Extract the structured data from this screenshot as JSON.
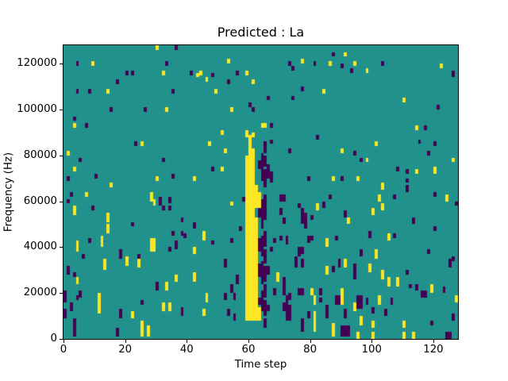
{
  "chart_data": {
    "type": "heatmap",
    "title": "Predicted : La",
    "xlabel": "Time step",
    "ylabel": "Frequency (Hz)",
    "x_range": [
      0,
      128
    ],
    "y_range": [
      0,
      128000
    ],
    "x_ticks": [
      0,
      20,
      40,
      60,
      80,
      100,
      120
    ],
    "y_ticks": [
      0,
      20000,
      40000,
      60000,
      80000,
      100000,
      120000
    ],
    "grid_size": [
      128,
      128
    ],
    "colormap": "viridis",
    "colors": {
      "mid": "#21918c",
      "high": "#fde725",
      "low": "#440154"
    },
    "cells": {
      "high_runs": [
        [
          30,
          126,
          127
        ],
        [
          9,
          119,
          120
        ],
        [
          32,
          115,
          116
        ],
        [
          43,
          114,
          115
        ],
        [
          44,
          115,
          116
        ],
        [
          59,
          115,
          116
        ],
        [
          46,
          112,
          113
        ],
        [
          61,
          111,
          112
        ],
        [
          14,
          107,
          108
        ],
        [
          49,
          107,
          108
        ],
        [
          33,
          99,
          100
        ],
        [
          54,
          99,
          100
        ],
        [
          3,
          92,
          93
        ],
        [
          64,
          92,
          93
        ],
        [
          51,
          89,
          90
        ],
        [
          59,
          89,
          90
        ],
        [
          61,
          88,
          89
        ],
        [
          53,
          120,
          121
        ],
        [
          25,
          84,
          85
        ],
        [
          47,
          84,
          85
        ],
        [
          91,
          123,
          124
        ],
        [
          77,
          120,
          121
        ],
        [
          122,
          118,
          119
        ],
        [
          86,
          119,
          120
        ],
        [
          94,
          119,
          120
        ],
        [
          98,
          116,
          117
        ],
        [
          110,
          103,
          104
        ],
        [
          84,
          107,
          108
        ],
        [
          114,
          91,
          92
        ],
        [
          65,
          92,
          93
        ],
        [
          101,
          84,
          85
        ],
        [
          1,
          80,
          81
        ],
        [
          52,
          81,
          82
        ],
        [
          3,
          73,
          74
        ],
        [
          30,
          69,
          70
        ],
        [
          42,
          69,
          70
        ],
        [
          51,
          73,
          74
        ],
        [
          15,
          66,
          67
        ],
        [
          7,
          62,
          63
        ],
        [
          28,
          60,
          63
        ],
        [
          29,
          58,
          60
        ],
        [
          3,
          54,
          57
        ],
        [
          54,
          58,
          59
        ],
        [
          14,
          51,
          54
        ],
        [
          14,
          46,
          49
        ],
        [
          45,
          45,
          46
        ],
        [
          4,
          38,
          42
        ],
        [
          28,
          38,
          43
        ],
        [
          29,
          38,
          43
        ],
        [
          12,
          40,
          44
        ],
        [
          42,
          37,
          39
        ],
        [
          45,
          43,
          44
        ],
        [
          90,
          81,
          82
        ],
        [
          98,
          77,
          78
        ],
        [
          126,
          77,
          78
        ],
        [
          114,
          72,
          73
        ],
        [
          120,
          72,
          74
        ],
        [
          87,
          69,
          70
        ],
        [
          95,
          69,
          70
        ],
        [
          103,
          65,
          67
        ],
        [
          102,
          60,
          62
        ],
        [
          124,
          60,
          62
        ],
        [
          82,
          56,
          58
        ],
        [
          100,
          54,
          56
        ],
        [
          103,
          56,
          58
        ],
        [
          92,
          50,
          52
        ],
        [
          105,
          43,
          45
        ],
        [
          85,
          40,
          43
        ],
        [
          20,
          32,
          35
        ],
        [
          24,
          31,
          34
        ],
        [
          13,
          30,
          34
        ],
        [
          4,
          24,
          26
        ],
        [
          36,
          25,
          27
        ],
        [
          42,
          25,
          28
        ],
        [
          33,
          21,
          24
        ],
        [
          11,
          11,
          19
        ],
        [
          46,
          16,
          19
        ],
        [
          32,
          12,
          15
        ],
        [
          34,
          12,
          15
        ],
        [
          22,
          9,
          11
        ],
        [
          45,
          10,
          12
        ],
        [
          25,
          1,
          7
        ],
        [
          27,
          1,
          5
        ],
        [
          101,
          35,
          38
        ],
        [
          85,
          28,
          31
        ],
        [
          91,
          31,
          34
        ],
        [
          99,
          29,
          32
        ],
        [
          103,
          26,
          29
        ],
        [
          105,
          23,
          26
        ],
        [
          108,
          23,
          26
        ],
        [
          119,
          20,
          23
        ],
        [
          69,
          25,
          28
        ],
        [
          80,
          19,
          21
        ],
        [
          81,
          15,
          18
        ],
        [
          90,
          15,
          21
        ],
        [
          102,
          15,
          18
        ],
        [
          94,
          12,
          15
        ],
        [
          81,
          3,
          11
        ],
        [
          96,
          6,
          9
        ],
        [
          100,
          5,
          7
        ],
        [
          110,
          5,
          7
        ],
        [
          87,
          1,
          6
        ],
        [
          95,
          0,
          2
        ],
        [
          100,
          0,
          2
        ],
        [
          110,
          0,
          2
        ],
        [
          113,
          0,
          2
        ],
        [
          127,
          16,
          18
        ],
        [
          59,
          8,
          79
        ],
        [
          59,
          88,
          89
        ],
        [
          60,
          8,
          88
        ],
        [
          61,
          8,
          82
        ],
        [
          62,
          8,
          52
        ],
        [
          62,
          57,
          66
        ],
        [
          63,
          57,
          63
        ],
        [
          63,
          8,
          13
        ]
      ],
      "low_runs": [
        [
          36,
          126,
          127
        ],
        [
          4,
          119,
          120
        ],
        [
          33,
          119,
          120
        ],
        [
          20,
          115,
          116
        ],
        [
          22,
          115,
          116
        ],
        [
          41,
          115,
          116
        ],
        [
          56,
          115,
          116
        ],
        [
          48,
          114,
          115
        ],
        [
          17,
          111,
          112
        ],
        [
          53,
          111,
          112
        ],
        [
          4,
          107,
          108
        ],
        [
          8,
          107,
          108
        ],
        [
          35,
          107,
          108
        ],
        [
          15,
          99,
          100
        ],
        [
          26,
          99,
          100
        ],
        [
          60,
          101,
          102
        ],
        [
          61,
          99,
          100
        ],
        [
          3,
          95,
          96
        ],
        [
          7,
          92,
          93
        ],
        [
          23,
          84,
          85
        ],
        [
          87,
          123,
          124
        ],
        [
          73,
          119,
          120
        ],
        [
          81,
          119,
          120
        ],
        [
          103,
          119,
          120
        ],
        [
          90,
          118,
          119
        ],
        [
          74,
          117,
          118
        ],
        [
          93,
          116,
          117
        ],
        [
          126,
          114,
          116
        ],
        [
          77,
          108,
          109
        ],
        [
          66,
          104,
          105
        ],
        [
          74,
          104,
          105
        ],
        [
          121,
          100,
          101
        ],
        [
          67,
          92,
          93
        ],
        [
          117,
          91,
          92
        ],
        [
          82,
          87,
          88
        ],
        [
          67,
          85,
          86
        ],
        [
          115,
          85,
          86
        ],
        [
          120,
          84,
          85
        ],
        [
          73,
          81,
          82
        ],
        [
          5,
          77,
          78
        ],
        [
          32,
          77,
          78
        ],
        [
          1,
          69,
          70
        ],
        [
          10,
          70,
          71
        ],
        [
          35,
          70,
          71
        ],
        [
          48,
          73,
          74
        ],
        [
          2,
          62,
          63
        ],
        [
          1,
          59,
          60
        ],
        [
          9,
          56,
          57
        ],
        [
          31,
          58,
          61
        ],
        [
          32,
          56,
          57
        ],
        [
          34,
          59,
          61
        ],
        [
          34,
          56,
          57
        ],
        [
          22,
          49,
          50
        ],
        [
          38,
          51,
          52
        ],
        [
          42,
          48,
          50
        ],
        [
          38,
          45,
          46
        ],
        [
          35,
          45,
          46
        ],
        [
          54,
          42,
          43
        ],
        [
          57,
          47,
          48
        ],
        [
          58,
          60,
          61
        ],
        [
          39,
          44,
          45
        ],
        [
          94,
          80,
          81
        ],
        [
          96,
          77,
          78
        ],
        [
          118,
          80,
          81
        ],
        [
          108,
          73,
          74
        ],
        [
          111,
          72,
          73
        ],
        [
          79,
          69,
          70
        ],
        [
          90,
          69,
          70
        ],
        [
          111,
          68,
          69
        ],
        [
          111,
          64,
          66
        ],
        [
          107,
          61,
          62
        ],
        [
          120,
          62,
          63
        ],
        [
          70,
          60,
          62
        ],
        [
          71,
          60,
          62
        ],
        [
          86,
          61,
          62
        ],
        [
          84,
          57,
          59
        ],
        [
          76,
          57,
          58
        ],
        [
          77,
          50,
          56
        ],
        [
          78,
          48,
          54
        ],
        [
          70,
          54,
          56
        ],
        [
          71,
          50,
          52
        ],
        [
          91,
          53,
          55
        ],
        [
          80,
          52,
          53
        ],
        [
          113,
          50,
          52
        ],
        [
          107,
          44,
          45
        ],
        [
          99,
          45,
          46
        ],
        [
          127,
          58,
          59
        ],
        [
          120,
          47,
          48
        ],
        [
          68,
          42,
          43
        ],
        [
          6,
          35,
          36
        ],
        [
          18,
          35,
          38
        ],
        [
          24,
          35,
          36
        ],
        [
          34,
          38,
          39
        ],
        [
          36,
          39,
          42
        ],
        [
          48,
          41,
          42
        ],
        [
          8,
          42,
          43
        ],
        [
          52,
          31,
          34
        ],
        [
          56,
          24,
          27
        ],
        [
          1,
          28,
          31
        ],
        [
          3,
          27,
          28
        ],
        [
          0,
          16,
          20
        ],
        [
          4,
          17,
          18
        ],
        [
          5,
          18,
          20
        ],
        [
          2,
          12,
          15
        ],
        [
          18,
          9,
          12
        ],
        [
          25,
          15,
          16
        ],
        [
          30,
          21,
          24
        ],
        [
          38,
          10,
          13
        ],
        [
          52,
          17,
          19
        ],
        [
          54,
          20,
          23
        ],
        [
          55,
          17,
          19
        ],
        [
          53,
          10,
          12
        ],
        [
          55,
          8,
          10
        ],
        [
          3,
          1,
          8
        ],
        [
          17,
          1,
          4
        ],
        [
          0,
          9,
          12
        ],
        [
          63,
          74,
          77
        ],
        [
          64,
          69,
          80
        ],
        [
          63,
          53,
          56
        ],
        [
          64,
          48,
          60
        ],
        [
          63,
          38,
          43
        ],
        [
          64,
          36,
          44
        ],
        [
          63,
          27,
          32
        ],
        [
          64,
          24,
          33
        ],
        [
          63,
          15,
          17
        ],
        [
          64,
          12,
          20
        ],
        [
          65,
          81,
          85
        ],
        [
          65,
          75,
          79
        ],
        [
          65,
          66,
          73
        ],
        [
          65,
          52,
          62
        ],
        [
          65,
          40,
          46
        ],
        [
          65,
          33,
          38
        ],
        [
          65,
          25,
          31
        ],
        [
          65,
          18,
          23
        ],
        [
          65,
          10,
          16
        ],
        [
          65,
          5,
          8
        ],
        [
          66,
          70,
          75
        ],
        [
          66,
          28,
          31
        ],
        [
          66,
          12,
          14
        ],
        [
          67,
          68,
          72
        ],
        [
          67,
          38,
          39
        ],
        [
          70,
          43,
          44
        ],
        [
          72,
          41,
          44
        ],
        [
          79,
          42,
          44
        ],
        [
          80,
          43,
          44
        ],
        [
          88,
          43,
          44
        ],
        [
          99,
          44,
          45
        ],
        [
          76,
          36,
          39
        ],
        [
          77,
          37,
          39
        ],
        [
          96,
          36,
          38
        ],
        [
          118,
          37,
          38
        ],
        [
          126,
          34,
          35
        ],
        [
          75,
          31,
          35
        ],
        [
          77,
          31,
          34
        ],
        [
          87,
          29,
          31
        ],
        [
          89,
          31,
          34
        ],
        [
          94,
          26,
          32
        ],
        [
          111,
          28,
          29
        ],
        [
          114,
          21,
          23
        ],
        [
          116,
          18,
          20
        ],
        [
          117,
          18,
          20
        ],
        [
          123,
          20,
          22
        ],
        [
          125,
          31,
          34
        ],
        [
          71,
          19,
          26
        ],
        [
          72,
          15,
          18
        ],
        [
          71,
          12,
          15
        ],
        [
          73,
          17,
          19
        ],
        [
          68,
          19,
          21
        ],
        [
          76,
          19,
          21
        ],
        [
          77,
          19,
          21
        ],
        [
          83,
          19,
          21
        ],
        [
          83,
          16,
          17
        ],
        [
          85,
          12,
          14
        ],
        [
          85,
          9,
          11
        ],
        [
          88,
          15,
          18
        ],
        [
          89,
          15,
          18
        ],
        [
          91,
          9,
          12
        ],
        [
          90,
          1,
          5
        ],
        [
          91,
          1,
          5
        ],
        [
          92,
          1,
          5
        ],
        [
          95,
          13,
          18
        ],
        [
          96,
          13,
          18
        ],
        [
          98,
          15,
          17
        ],
        [
          100,
          11,
          13
        ],
        [
          104,
          10,
          12
        ],
        [
          106,
          15,
          17
        ],
        [
          112,
          22,
          23
        ],
        [
          119,
          6,
          7
        ],
        [
          126,
          8,
          10
        ],
        [
          124,
          0,
          2
        ],
        [
          125,
          0,
          2
        ],
        [
          72,
          8,
          14
        ],
        [
          73,
          8,
          14
        ],
        [
          77,
          3,
          8
        ],
        [
          79,
          9,
          11
        ]
      ]
    }
  }
}
